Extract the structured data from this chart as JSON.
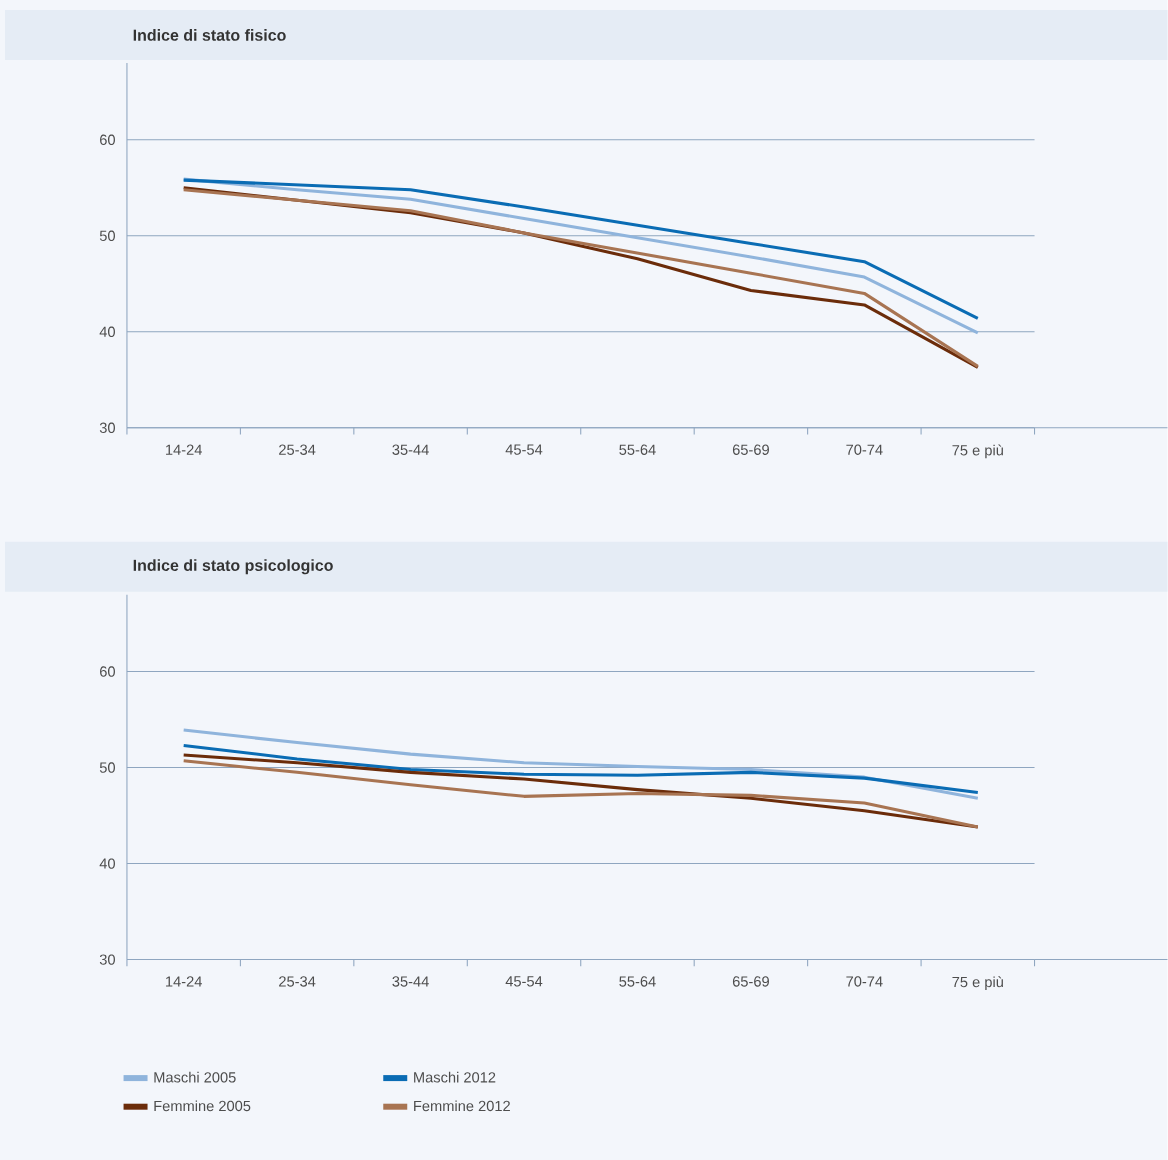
{
  "chart_data": [
    {
      "type": "line",
      "title": "Indice di stato fisico",
      "categories": [
        "14-24",
        "25-34",
        "35-44",
        "45-54",
        "55-64",
        "65-69",
        "70-74",
        "75 e più"
      ],
      "ylim": [
        30,
        68
      ],
      "yticks": [
        30,
        40,
        50,
        60
      ],
      "grid": "y",
      "legend": false,
      "series": [
        {
          "color": "#8fb4dc",
          "values": [
            55.9,
            54.8,
            53.8,
            51.8,
            49.8,
            47.8,
            45.7,
            39.9
          ]
        },
        {
          "color": "#0a6cb4",
          "values": [
            55.8,
            55.3,
            54.8,
            53.0,
            51.1,
            49.2,
            47.3,
            41.4
          ]
        },
        {
          "color": "#6b2c0a",
          "values": [
            55.0,
            53.7,
            52.4,
            50.3,
            47.6,
            44.3,
            42.8,
            36.3
          ]
        },
        {
          "color": "#a87452",
          "values": [
            54.8,
            53.7,
            52.6,
            50.3,
            48.2,
            46.1,
            44.0,
            36.4
          ]
        }
      ]
    },
    {
      "type": "line",
      "title": "Indice di stato psicologico",
      "categories": [
        "14-24",
        "25-34",
        "35-44",
        "45-54",
        "55-64",
        "65-69",
        "70-74",
        "75 e più"
      ],
      "ylim": [
        30,
        68
      ],
      "yticks": [
        30,
        40,
        50,
        60
      ],
      "grid": "y",
      "legend": "bottom",
      "series": [
        {
          "name": "Maschi 2005",
          "color": "#8fb4dc",
          "values": [
            53.9,
            52.6,
            51.4,
            50.5,
            50.1,
            49.8,
            49.0,
            46.8
          ]
        },
        {
          "name": "Maschi 2012",
          "color": "#0a6cb4",
          "values": [
            52.3,
            50.9,
            49.8,
            49.3,
            49.2,
            49.5,
            48.9,
            47.4
          ]
        },
        {
          "name": "Femmine 2005",
          "color": "#6b2c0a",
          "values": [
            51.3,
            50.5,
            49.5,
            48.8,
            47.7,
            46.8,
            45.5,
            43.8
          ]
        },
        {
          "name": "Femmine 2012",
          "color": "#a87452",
          "values": [
            50.7,
            49.5,
            48.2,
            47.0,
            47.3,
            47.1,
            46.3,
            43.8
          ]
        }
      ]
    }
  ]
}
